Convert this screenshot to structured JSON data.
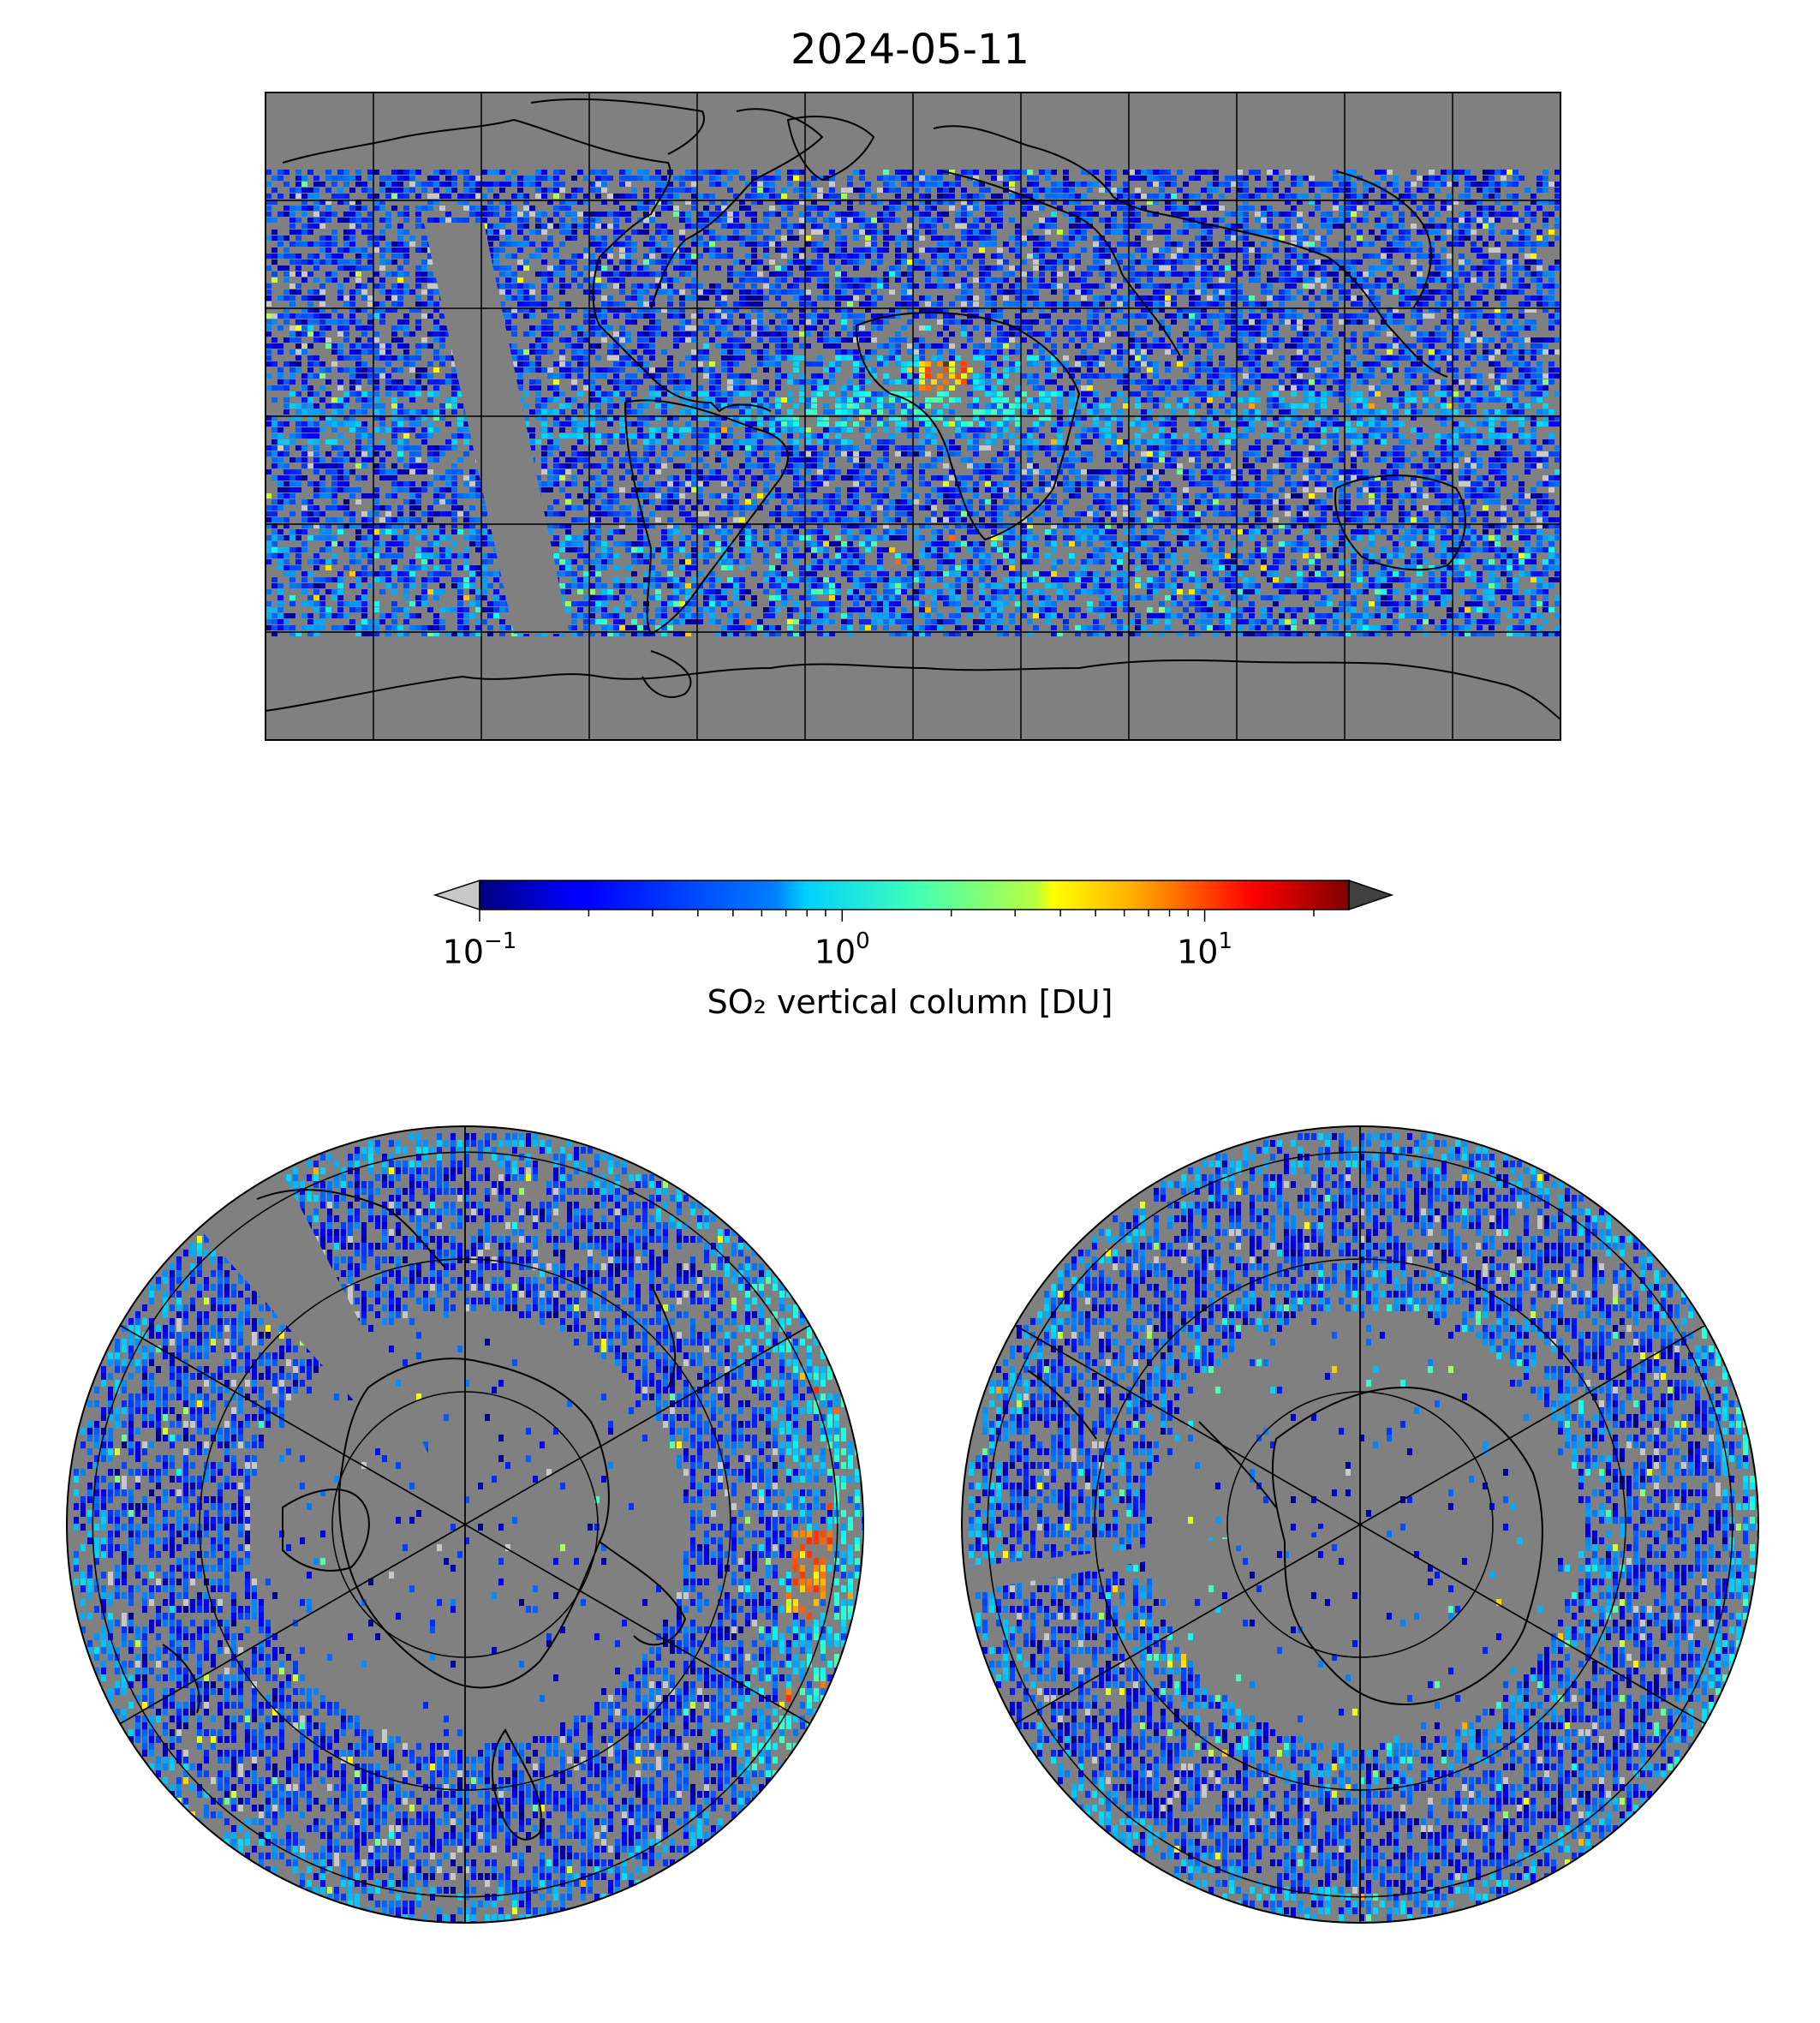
{
  "figure": {
    "title": "2024-05-11",
    "colorbar": {
      "label": "SO₂ vertical column [DU]",
      "scale": "log",
      "range": [
        0.1,
        25
      ],
      "extend": "both",
      "colormap": "jet",
      "under_color": "#c8c8c8",
      "over_color": "#404040",
      "ticks": [
        {
          "base": "10",
          "exp": "−1",
          "value": 0.1
        },
        {
          "base": "10",
          "exp": "0",
          "value": 1
        },
        {
          "base": "10",
          "exp": "1",
          "value": 10
        }
      ]
    },
    "colors": {
      "no_data": "#808080",
      "coastline": "#000000",
      "gridline": "#000000",
      "background": "#ffffff"
    },
    "panels": [
      {
        "name": "global-map",
        "projection": "plate-carree",
        "lon_range": [
          -180,
          180
        ],
        "lat_range": [
          -90,
          90
        ],
        "gridline_step_deg": 30
      },
      {
        "name": "north-polar-map",
        "projection": "north-polar-stereographic",
        "boundary_lat": 0,
        "gridline_step_deg": 30
      },
      {
        "name": "south-polar-map",
        "projection": "south-polar-stereographic",
        "boundary_lat": 0,
        "gridline_step_deg": 30
      }
    ],
    "features": [
      {
        "description": "ITCZ enhanced band",
        "lat": 0,
        "level_du": 1.0
      },
      {
        "description": "North Africa hotspot",
        "lon": 5,
        "lat": 12,
        "level_du": 8
      },
      {
        "description": "Southern ocean streaks",
        "lat": -45,
        "level_du": 2
      }
    ]
  }
}
